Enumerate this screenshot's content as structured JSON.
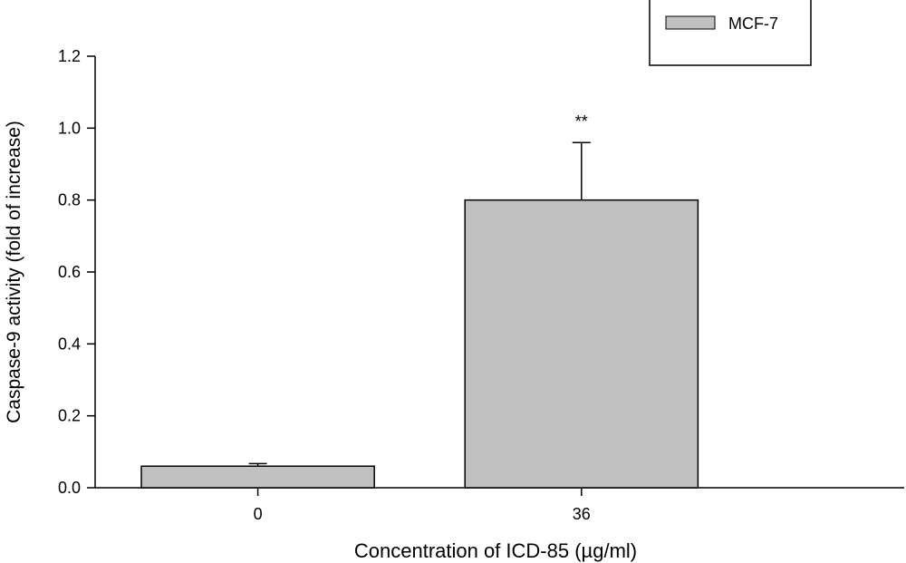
{
  "chart_data": {
    "type": "bar",
    "title": "",
    "xlabel": "Concentration of ICD-85 (µg/ml)",
    "ylabel": "Caspase-9 activity (fold of increase)",
    "categories": [
      "0",
      "36"
    ],
    "series": [
      {
        "name": "MCF-7",
        "values": [
          0.06,
          0.8
        ],
        "errors": [
          0.007,
          0.16
        ],
        "color": "#c0c0c0"
      }
    ],
    "annotations": [
      {
        "category": "36",
        "text": "**"
      }
    ],
    "ylim": [
      0,
      1.2
    ],
    "yticks": [
      "0.0",
      "0.2",
      "0.4",
      "0.6",
      "0.8",
      "1.0",
      "1.2"
    ],
    "grid": false,
    "legend_position": "top-right"
  }
}
